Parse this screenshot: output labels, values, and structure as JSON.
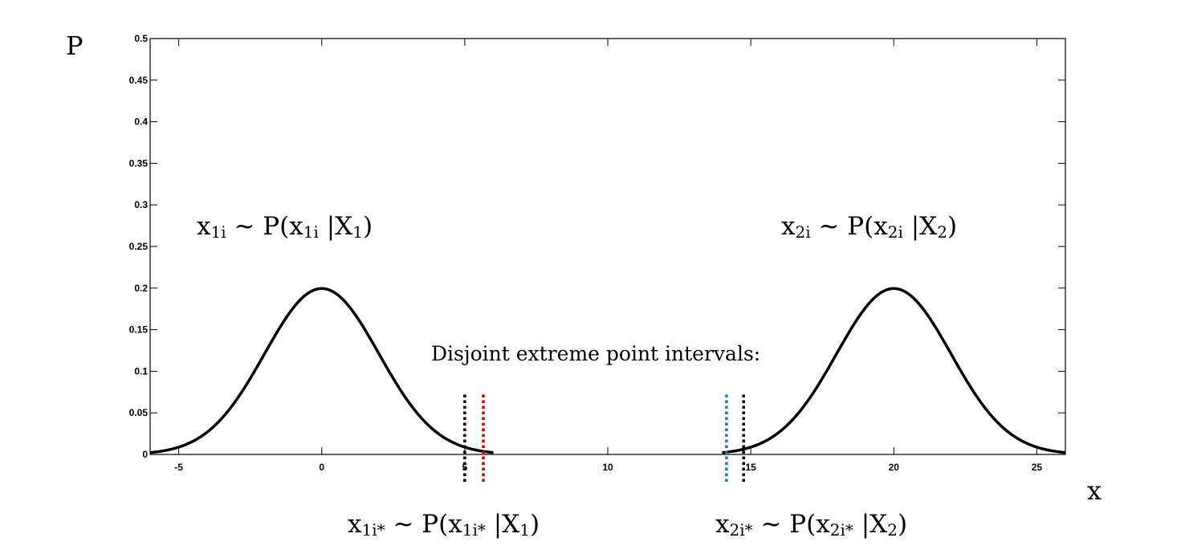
{
  "chart_data": {
    "type": "line",
    "title": "",
    "xlabel": "x",
    "ylabel": "P",
    "xlim": [
      -6,
      26
    ],
    "ylim": [
      0,
      0.5
    ],
    "x_ticks": [
      -5,
      0,
      5,
      10,
      15,
      20,
      25
    ],
    "x_tick_labels": [
      "-5",
      "0",
      "5",
      "10",
      "15",
      "20",
      "25"
    ],
    "y_ticks": [
      0,
      0.05,
      0.1,
      0.15,
      0.2,
      0.25,
      0.3,
      0.35,
      0.4,
      0.45,
      0.5
    ],
    "y_tick_labels": [
      "0",
      "0.05",
      "0.1",
      "0.15",
      "0.2",
      "0.25",
      "0.3",
      "0.35",
      "0.4",
      "0.45",
      "0.5"
    ],
    "grid": false,
    "series": [
      {
        "mean": 0,
        "std": 2,
        "x_range": [
          -6,
          6
        ],
        "color": "#000000"
      },
      {
        "mean": 20,
        "std": 2,
        "x_range": [
          14,
          26
        ],
        "color": "#000000"
      }
    ],
    "vertical_lines": [
      {
        "x": 5.0,
        "y_top": 0.07,
        "color": "#000000",
        "style": "dotted"
      },
      {
        "x": 5.65,
        "y_top": 0.07,
        "color": "#cc0000",
        "style": "dotted"
      },
      {
        "x": 14.15,
        "y_top": 0.07,
        "color": "#1f7f84",
        "style": "dotted"
      },
      {
        "x": 14.75,
        "y_top": 0.07,
        "color": "#000000",
        "style": "dotted"
      }
    ],
    "annotations": {
      "dist1": {
        "main": "x",
        "sub": "1i",
        "mid": " ~ P(x",
        "sub2": "1i",
        "mid2": " |X",
        "sub3": "1",
        "end": ")"
      },
      "dist2": {
        "main": "x",
        "sub": "2i",
        "mid": " ~ P(x",
        "sub2": "2i",
        "mid2": " |X",
        "sub3": "2",
        "end": ")"
      },
      "extreme1": {
        "main": "x",
        "sub": "1i*",
        "mid": " ~ P(x",
        "sub2": "1i*",
        "mid2": " |X",
        "sub3": "1",
        "end": ")"
      },
      "extreme2": {
        "main": "x",
        "sub": "2i*",
        "mid": " ~ P(x",
        "sub2": "2i*",
        "mid2": " |X",
        "sub3": "2",
        "end": ")"
      },
      "intervals_note": "Disjoint extreme point intervals:"
    }
  }
}
